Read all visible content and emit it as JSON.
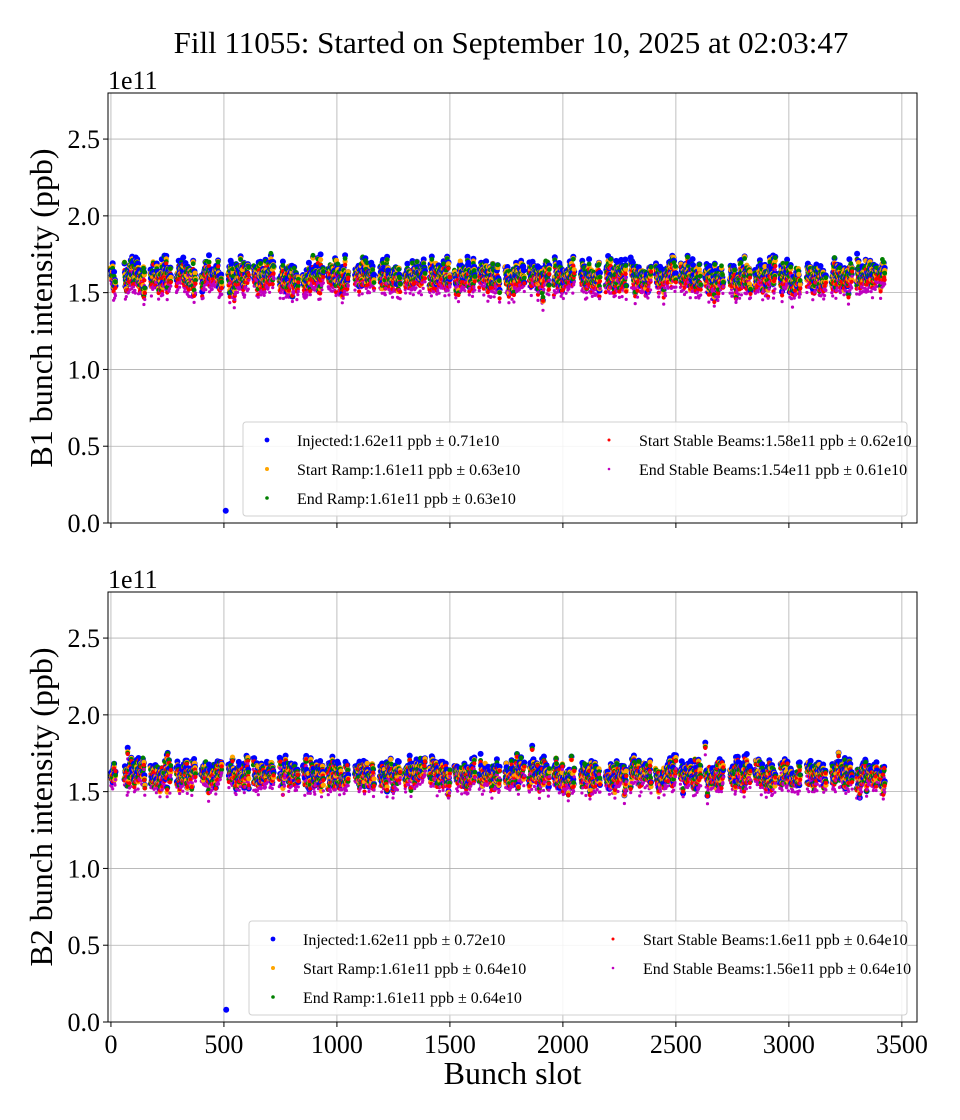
{
  "title": "Fill 11055: Started on September 10, 2025 at 02:03:47",
  "chart_data": [
    {
      "type": "scatter",
      "ylabel": "B1 bunch intensity (ppb)",
      "xlabel": "",
      "offset_label": "1e11",
      "xlim": [
        -13,
        3567
      ],
      "ylim": [
        0,
        2.8
      ],
      "xticks": [
        0,
        500,
        1000,
        1500,
        2000,
        2500,
        3000,
        3500
      ],
      "xtick_labels_shown": false,
      "yticks": [
        "0.0",
        "0.5",
        "1.0",
        "1.5",
        "2.0",
        "2.5"
      ],
      "grid": true,
      "legend_position": "lower-right",
      "filled_slot_ranges": [
        [
          0,
          20
        ],
        [
          60,
          150
        ],
        [
          175,
          265
        ],
        [
          290,
          375
        ],
        [
          400,
          490
        ],
        [
          520,
          610
        ],
        [
          630,
          720
        ],
        [
          745,
          830
        ],
        [
          850,
          940
        ],
        [
          960,
          1050
        ],
        [
          1080,
          1165
        ],
        [
          1190,
          1280
        ],
        [
          1300,
          1390
        ],
        [
          1410,
          1500
        ],
        [
          1520,
          1610
        ],
        [
          1630,
          1720
        ],
        [
          1745,
          1830
        ],
        [
          1850,
          1940
        ],
        [
          1960,
          2050
        ],
        [
          2080,
          2165
        ],
        [
          2190,
          2280
        ],
        [
          2300,
          2390
        ],
        [
          2410,
          2500
        ],
        [
          2520,
          2610
        ],
        [
          2630,
          2710
        ],
        [
          2740,
          2830
        ],
        [
          2850,
          2940
        ],
        [
          2960,
          3050
        ],
        [
          3080,
          3165
        ],
        [
          3190,
          3280
        ],
        [
          3300,
          3390
        ],
        [
          3400,
          3425
        ]
      ],
      "outliers": [
        {
          "series": "Injected",
          "x": 508,
          "y": 0.08
        }
      ],
      "series": [
        {
          "name": "Injected",
          "label": "Injected:1.62e11 ppb ± 0.71e10",
          "mean": 1.62,
          "std": 0.071,
          "color": "#0000ff"
        },
        {
          "name": "Start Ramp",
          "label": "Start Ramp:1.61e11 ppb ± 0.63e10",
          "mean": 1.61,
          "std": 0.063,
          "color": "#ffa500"
        },
        {
          "name": "End Ramp",
          "label": "End Ramp:1.61e11 ppb ± 0.63e10",
          "mean": 1.61,
          "std": 0.063,
          "color": "#008000"
        },
        {
          "name": "Start Stable Beams",
          "label": "Start Stable Beams:1.58e11 ppb ± 0.62e10",
          "mean": 1.58,
          "std": 0.062,
          "color": "#ff0000"
        },
        {
          "name": "End Stable Beams",
          "label": "End Stable Beams:1.54e11 ppb ± 0.61e10",
          "mean": 1.54,
          "std": 0.061,
          "color": "#bf00bf"
        }
      ]
    },
    {
      "type": "scatter",
      "ylabel": "B2 bunch intensity (ppb)",
      "xlabel": "Bunch slot",
      "offset_label": "1e11",
      "xlim": [
        -13,
        3567
      ],
      "ylim": [
        0,
        2.8
      ],
      "xticks": [
        0,
        500,
        1000,
        1500,
        2000,
        2500,
        3000,
        3500
      ],
      "xtick_labels_shown": true,
      "xtick_labels": [
        "0",
        "500",
        "1000",
        "1500",
        "2000",
        "2500",
        "3000",
        "3500"
      ],
      "yticks": [
        "0.0",
        "0.5",
        "1.0",
        "1.5",
        "2.0",
        "2.5"
      ],
      "grid": true,
      "legend_position": "lower-right",
      "filled_slot_ranges": [
        [
          0,
          20
        ],
        [
          60,
          150
        ],
        [
          175,
          265
        ],
        [
          290,
          375
        ],
        [
          400,
          490
        ],
        [
          520,
          610
        ],
        [
          630,
          720
        ],
        [
          745,
          830
        ],
        [
          850,
          940
        ],
        [
          960,
          1050
        ],
        [
          1080,
          1165
        ],
        [
          1190,
          1280
        ],
        [
          1300,
          1390
        ],
        [
          1410,
          1500
        ],
        [
          1520,
          1610
        ],
        [
          1630,
          1720
        ],
        [
          1745,
          1830
        ],
        [
          1850,
          1940
        ],
        [
          1960,
          2050
        ],
        [
          2080,
          2165
        ],
        [
          2190,
          2280
        ],
        [
          2300,
          2390
        ],
        [
          2410,
          2500
        ],
        [
          2520,
          2610
        ],
        [
          2630,
          2710
        ],
        [
          2740,
          2830
        ],
        [
          2850,
          2940
        ],
        [
          2960,
          3050
        ],
        [
          3080,
          3165
        ],
        [
          3190,
          3280
        ],
        [
          3300,
          3390
        ],
        [
          3400,
          3425
        ]
      ],
      "outliers": [
        {
          "series": "Injected",
          "x": 510,
          "y": 0.08
        }
      ],
      "series": [
        {
          "name": "Injected",
          "label": "Injected:1.62e11 ppb ± 0.72e10",
          "mean": 1.62,
          "std": 0.072,
          "color": "#0000ff"
        },
        {
          "name": "Start Ramp",
          "label": "Start Ramp:1.61e11 ppb ± 0.64e10",
          "mean": 1.61,
          "std": 0.064,
          "color": "#ffa500"
        },
        {
          "name": "End Ramp",
          "label": "End Ramp:1.61e11 ppb ± 0.64e10",
          "mean": 1.61,
          "std": 0.064,
          "color": "#008000"
        },
        {
          "name": "Start Stable Beams",
          "label": "Start Stable Beams:1.6e11 ppb ± 0.64e10",
          "mean": 1.6,
          "std": 0.064,
          "color": "#ff0000"
        },
        {
          "name": "End Stable Beams",
          "label": "End Stable Beams:1.56e11 ppb ± 0.64e10",
          "mean": 1.56,
          "std": 0.064,
          "color": "#bf00bf"
        }
      ]
    }
  ]
}
